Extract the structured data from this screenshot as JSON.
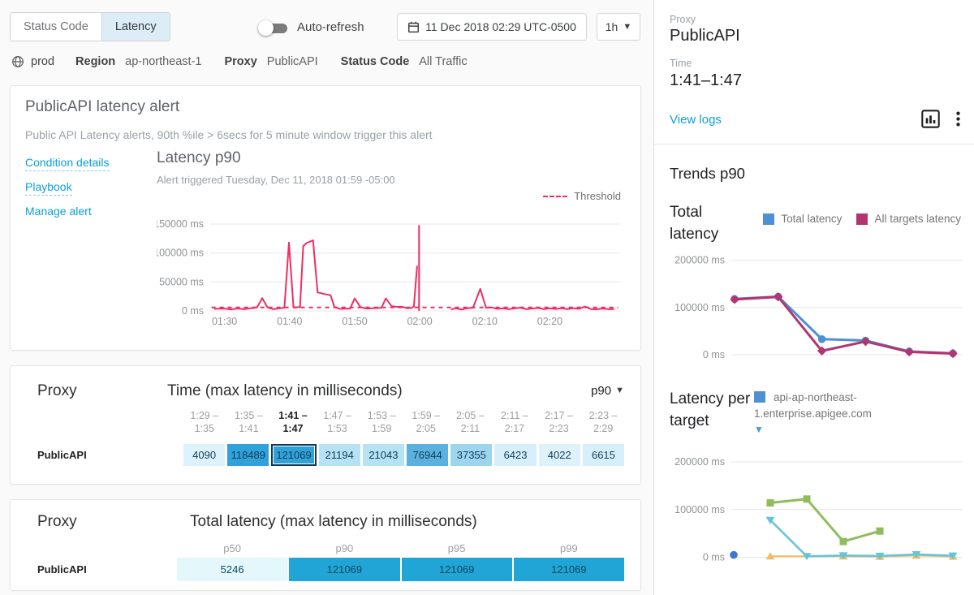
{
  "topbar": {
    "tabs": [
      {
        "label": "Status Code",
        "active": false
      },
      {
        "label": "Latency",
        "active": true
      }
    ],
    "auto_refresh_label": "Auto-refresh",
    "auto_refresh_on": false,
    "date_range": "11 Dec 2018 02:29 UTC-0500",
    "interval": "1h"
  },
  "breadcrumb": {
    "env": "prod",
    "items": [
      {
        "label": "Region",
        "value": "ap-northeast-1"
      },
      {
        "label": "Proxy",
        "value": "PublicAPI"
      },
      {
        "label": "Status Code",
        "value": "All Traffic"
      }
    ]
  },
  "alert_card": {
    "title": "PublicAPI latency alert",
    "description": "Public API Latency alerts, 90th %ile > 6secs for 5 minute window trigger this alert",
    "links": [
      {
        "label": "Condition details",
        "dashed": true
      },
      {
        "label": "Playbook",
        "dashed": true
      },
      {
        "label": "Manage alert",
        "dashed": false
      }
    ],
    "chart_title": "Latency p90",
    "chart_subtitle": "Alert triggered Tuesday, Dec 11, 2018 01:59 -05:00",
    "threshold_legend": "Threshold"
  },
  "time_table": {
    "proxy_header": "Proxy",
    "title": "Time (max latency in milliseconds)",
    "percentile": "p90",
    "columns": [
      {
        "from": "1:29 –",
        "to": "1:35",
        "selected": false
      },
      {
        "from": "1:35 –",
        "to": "1:41",
        "selected": false
      },
      {
        "from": "1:41 –",
        "to": "1:47",
        "selected": true
      },
      {
        "from": "1:47 –",
        "to": "1:53",
        "selected": false
      },
      {
        "from": "1:53 –",
        "to": "1:59",
        "selected": false
      },
      {
        "from": "1:59 –",
        "to": "2:05",
        "selected": false
      },
      {
        "from": "2:05 –",
        "to": "2:11",
        "selected": false
      },
      {
        "from": "2:11 –",
        "to": "2:17",
        "selected": false
      },
      {
        "from": "2:17 –",
        "to": "2:23",
        "selected": false
      },
      {
        "from": "2:23 –",
        "to": "2:29",
        "selected": false
      }
    ],
    "row_label": "PublicAPI",
    "cells": [
      {
        "value": "4090",
        "bg": "#ddf2fa",
        "selected": false
      },
      {
        "value": "118489",
        "bg": "#31a1d9",
        "selected": false
      },
      {
        "value": "121069",
        "bg": "#31a1d9",
        "selected": true
      },
      {
        "value": "21194",
        "bg": "#b6e2f3",
        "selected": false
      },
      {
        "value": "21043",
        "bg": "#b6e2f3",
        "selected": false
      },
      {
        "value": "76944",
        "bg": "#5bb1de",
        "selected": false
      },
      {
        "value": "37355",
        "bg": "#9dd5ee",
        "selected": false
      },
      {
        "value": "6423",
        "bg": "#d7effa",
        "selected": false
      },
      {
        "value": "4022",
        "bg": "#ddf2fa",
        "selected": false
      },
      {
        "value": "6615",
        "bg": "#d7effa",
        "selected": false
      }
    ]
  },
  "total_table": {
    "proxy_header": "Proxy",
    "title": "Total latency (max latency in milliseconds)",
    "columns": [
      "p50",
      "p90",
      "p95",
      "p99"
    ],
    "row_label": "PublicAPI",
    "cells": [
      {
        "value": "5246",
        "bg": "#e4f8fc"
      },
      {
        "value": "121069",
        "bg": "#21a5d6"
      },
      {
        "value": "121069",
        "bg": "#21a5d6"
      },
      {
        "value": "121069",
        "bg": "#21a5d6"
      }
    ]
  },
  "side_panel": {
    "proxy_label": "Proxy",
    "proxy_value": "PublicAPI",
    "time_label": "Time",
    "time_value": "1:41–1:47",
    "view_logs": "View logs",
    "trends_title": "Trends p90",
    "total_latency_label": "Total latency",
    "legend": [
      {
        "label": "Total latency",
        "color": "#4d90d3"
      },
      {
        "label": "All targets latency",
        "color": "#b23570"
      }
    ],
    "per_target_label": "Latency per target",
    "per_target_legend": "api-ap-northeast-1.enterprise.apigee.com",
    "per_target_swatch_color": "#4d90d3"
  },
  "chart_data": [
    {
      "type": "line",
      "title": "Latency p90",
      "subtitle": "Alert triggered Tuesday, Dec 11, 2018 01:59 -05:00",
      "x_unit": "minutes since 01:29",
      "ylim": [
        0,
        150000
      ],
      "yticks": [
        {
          "v": 0,
          "label": "0 ms"
        },
        {
          "v": 50000,
          "label": "50000 ms"
        },
        {
          "v": 100000,
          "label": "100000 ms"
        },
        {
          "v": 150000,
          "label": "150000 ms"
        }
      ],
      "xticks": [
        {
          "v": 1,
          "label": "01:30"
        },
        {
          "v": 11,
          "label": "01:40"
        },
        {
          "v": 21,
          "label": "01:50"
        },
        {
          "v": 31,
          "label": "02:00"
        },
        {
          "v": 41,
          "label": "02:10"
        },
        {
          "v": 51,
          "label": "02:20"
        }
      ],
      "series": [
        {
          "name": "Threshold",
          "color": "#ed2e63",
          "width": 2,
          "dash": "5,5",
          "points": [
            [
              -1,
              6000
            ],
            [
              61.5,
              6000
            ]
          ]
        },
        {
          "name": "alert trigger marker 01:59",
          "color": "#ed2e63",
          "width": 2,
          "points": [
            [
              30.9,
              300
            ],
            [
              30.9,
              148000
            ]
          ]
        },
        {
          "name": "Latency p90",
          "color": "#ed2e63",
          "width": 2,
          "points": [
            [
              -0.6,
              3500
            ],
            [
              1,
              4000
            ],
            [
              2,
              2500
            ],
            [
              3,
              4200
            ],
            [
              4,
              3000
            ],
            [
              5,
              4500
            ],
            [
              6,
              6000
            ],
            [
              6.8,
              22000
            ],
            [
              7.6,
              6000
            ],
            [
              8.5,
              3000
            ],
            [
              9.5,
              4500
            ],
            [
              10.2,
              5500
            ],
            [
              10.9,
              118000
            ],
            [
              11.6,
              6000
            ],
            [
              12.6,
              6500
            ],
            [
              13.1,
              112000
            ],
            [
              13.6,
              117000
            ],
            [
              14.6,
              122000
            ],
            [
              15.3,
              32000
            ],
            [
              16.4,
              29000
            ],
            [
              17.3,
              27000
            ],
            [
              17.9,
              6500
            ],
            [
              18.8,
              3500
            ],
            [
              19.8,
              4000
            ],
            [
              20.3,
              3800
            ],
            [
              21,
              21500
            ],
            [
              21.9,
              6500
            ],
            [
              22.8,
              4000
            ],
            [
              24,
              4800
            ],
            [
              25.1,
              5200
            ],
            [
              25.8,
              21500
            ],
            [
              26.7,
              8000
            ],
            [
              27.5,
              7000
            ],
            [
              28.3,
              7200
            ],
            [
              29,
              4800
            ],
            [
              29.8,
              5000
            ],
            [
              30.1,
              8000
            ],
            [
              30.6,
              78000
            ],
            null,
            [
              35.8,
              2500
            ],
            [
              36.6,
              4500
            ],
            [
              37.4,
              2200
            ],
            [
              38.3,
              4800
            ],
            [
              39.2,
              5500
            ],
            [
              40.3,
              38000
            ],
            [
              41.2,
              5200
            ],
            [
              42,
              6000
            ],
            [
              42.9,
              3500
            ],
            [
              43.8,
              4500
            ],
            [
              44.7,
              3000
            ],
            [
              45.6,
              4300
            ],
            [
              46.5,
              5500
            ],
            [
              47.4,
              3000
            ],
            [
              48.3,
              4200
            ],
            [
              49.2,
              5000
            ],
            [
              50.1,
              3000
            ],
            [
              51,
              4500
            ],
            [
              51.9,
              3400
            ],
            [
              52.8,
              4600
            ],
            [
              53.7,
              3000
            ],
            [
              54.6,
              4800
            ],
            [
              55.5,
              3500
            ],
            [
              56.4,
              7500
            ],
            [
              57.3,
              3200
            ],
            [
              58.2,
              2600
            ],
            [
              59.1,
              4200
            ],
            [
              60,
              3000
            ],
            [
              60.9,
              3400
            ]
          ]
        }
      ]
    },
    {
      "type": "line",
      "title": "Total latency (Trends p90)",
      "ylim": [
        0,
        200000
      ],
      "yticks": [
        {
          "v": 0,
          "label": "0 ms"
        },
        {
          "v": 100000,
          "label": "100000 ms"
        },
        {
          "v": 200000,
          "label": "200000 ms"
        }
      ],
      "series": [
        {
          "name": "Total latency",
          "color": "#4d90d3",
          "marker": "circle",
          "width": 3,
          "points": [
            [
              0,
              118000
            ],
            [
              1,
              123000
            ],
            [
              2,
              33000
            ],
            [
              3,
              30000
            ],
            [
              4,
              7000
            ],
            [
              5,
              3000
            ]
          ]
        },
        {
          "name": "All targets latency",
          "color": "#b23570",
          "marker": "diamond",
          "width": 3,
          "points": [
            [
              0,
              117000
            ],
            [
              1,
              122500
            ],
            [
              2,
              8000
            ],
            [
              3,
              28000
            ],
            [
              4,
              6000
            ],
            [
              5,
              2500
            ]
          ]
        }
      ]
    },
    {
      "type": "line",
      "title": "Latency per target (Trends p90)",
      "ylim": [
        0,
        200000
      ],
      "yticks": [
        {
          "v": 0,
          "label": "0 ms"
        },
        {
          "v": 100000,
          "label": "100000 ms"
        },
        {
          "v": 200000,
          "label": "200000 ms"
        }
      ],
      "series": [
        {
          "name": "",
          "color": "#f2bc61",
          "marker": "triangle-up",
          "width": 2,
          "points": [
            [
              1,
              2000
            ],
            [
              3,
              2000
            ],
            [
              4,
              1200
            ],
            [
              5,
              3500
            ],
            [
              6,
              1500
            ]
          ]
        },
        {
          "name": "",
          "color": "#66c4d8",
          "marker": "triangle-down",
          "width": 2.5,
          "points": [
            [
              1,
              78000
            ],
            [
              2,
              2000
            ],
            [
              3,
              3500
            ],
            [
              4,
              2800
            ],
            [
              5,
              6000
            ],
            [
              6,
              3200
            ]
          ]
        },
        {
          "name": "",
          "color": "#8fbd59",
          "marker": "square",
          "width": 3,
          "points": [
            [
              1,
              114000
            ],
            [
              2,
              122000
            ],
            [
              3,
              33000
            ],
            [
              4,
              55000
            ]
          ]
        },
        {
          "name": "api-ap-northeast-1.enterprise.apigee.com",
          "color": "#3b78d8",
          "marker": "circle",
          "line": false,
          "points": [
            [
              0,
              5000
            ]
          ]
        }
      ]
    }
  ]
}
